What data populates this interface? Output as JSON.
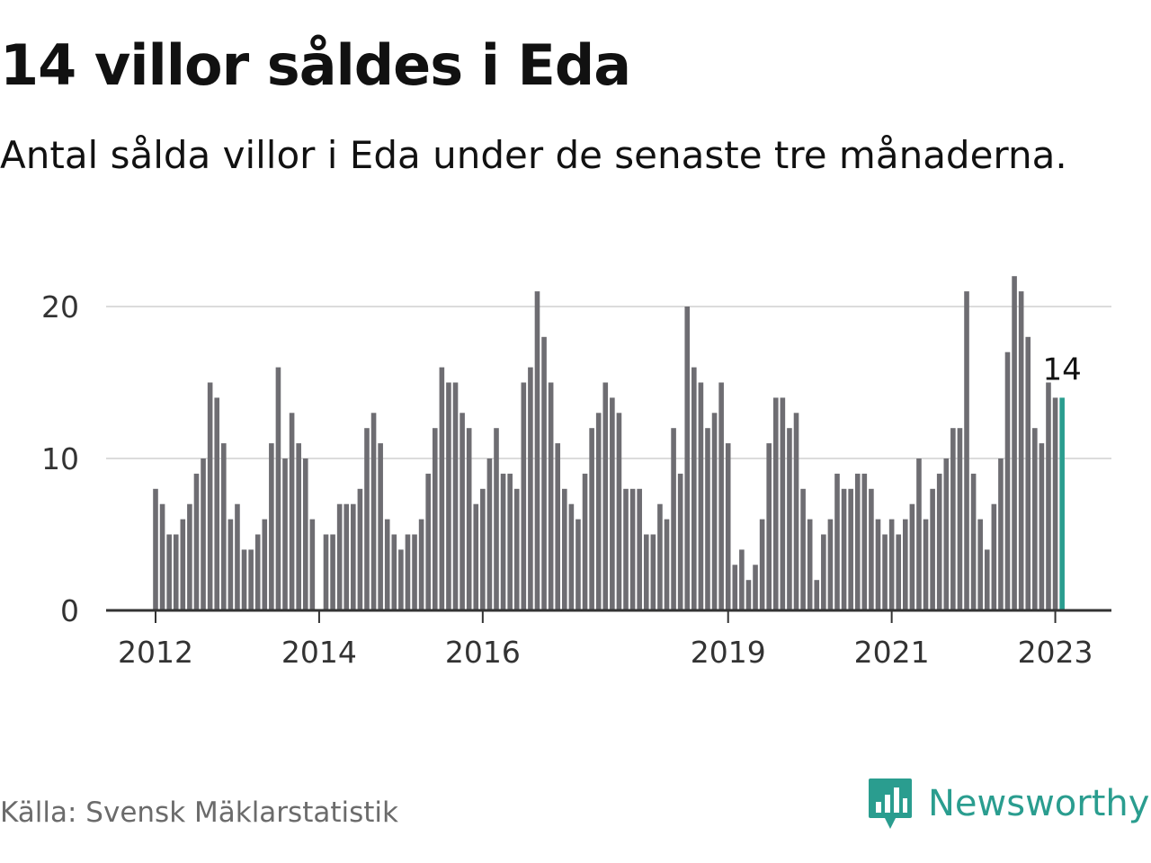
{
  "title": "14 villor såldes i Eda",
  "subtitle": "Antal sålda villor i Eda under de senaste tre månaderna.",
  "source": "Källa: Svensk Mäklarstatistik",
  "brand": {
    "name": "Newsworthy",
    "icon": "newsworthy-logo-icon"
  },
  "colors": {
    "bar": "#6e6d72",
    "highlight": "#2a9d8f",
    "grid": "#dcdcdc",
    "axis": "#333333",
    "brand": "#2a9d8f"
  },
  "chart_data": {
    "type": "bar",
    "start": "2012-01",
    "x_ticks": [
      "2012",
      "2014",
      "2016",
      "2019",
      "2021",
      "2023"
    ],
    "y_ticks": [
      0,
      10,
      20
    ],
    "ylim": [
      0,
      22
    ],
    "grid": true,
    "highlight_label": "14",
    "values": [
      8,
      7,
      5,
      5,
      6,
      7,
      9,
      10,
      15,
      14,
      11,
      6,
      7,
      4,
      4,
      5,
      6,
      11,
      16,
      10,
      13,
      11,
      10,
      6,
      null,
      5,
      5,
      7,
      7,
      7,
      8,
      12,
      13,
      11,
      6,
      5,
      4,
      5,
      5,
      6,
      9,
      12,
      16,
      15,
      15,
      13,
      12,
      7,
      8,
      10,
      12,
      9,
      9,
      8,
      15,
      16,
      21,
      18,
      15,
      11,
      8,
      7,
      6,
      9,
      12,
      13,
      15,
      14,
      13,
      8,
      8,
      8,
      5,
      5,
      7,
      6,
      12,
      9,
      20,
      16,
      15,
      12,
      13,
      15,
      11,
      3,
      4,
      2,
      3,
      6,
      11,
      14,
      14,
      12,
      13,
      8,
      6,
      2,
      5,
      6,
      9,
      8,
      8,
      9,
      9,
      8,
      6,
      5,
      6,
      5,
      6,
      7,
      10,
      6,
      8,
      9,
      10,
      12,
      12,
      21,
      9,
      6,
      4,
      7,
      10,
      17,
      22,
      21,
      18,
      12,
      11,
      15,
      14,
      14
    ]
  }
}
